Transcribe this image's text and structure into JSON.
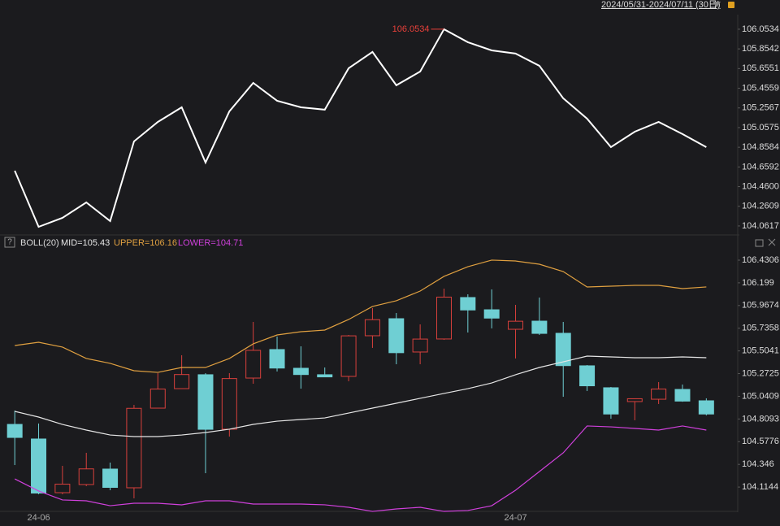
{
  "header": {
    "range": "2024/05/31-2024/07/11 (30日)"
  },
  "chart_data": [
    {
      "type": "line",
      "color": "#ffffff",
      "annotation": "106.0534",
      "annotation_color": "#e8403a",
      "values": [
        104.621,
        104.053,
        104.144,
        104.3,
        104.111,
        104.918,
        105.115,
        105.263,
        104.704,
        105.222,
        105.51,
        105.329,
        105.263,
        105.239,
        105.658,
        105.823,
        105.486,
        105.625,
        106.0534,
        105.922,
        105.839,
        105.807,
        105.683,
        105.354,
        105.148,
        104.86,
        105.016,
        105.115,
        104.992,
        104.86
      ],
      "ylim": [
        103.979,
        106.201
      ],
      "yticks": [
        106.0534,
        105.8542,
        105.6551,
        105.4559,
        105.2567,
        105.0575,
        104.8584,
        104.6592,
        {
          "value": 104.46,
          "label": "104.4600"
        },
        104.2609,
        104.0617
      ]
    },
    {
      "type": "candlestick",
      "indicator": "BOLL(20)",
      "up_color": "#d8403c",
      "down_color": "#6fcfd3",
      "categories": [
        null,
        "24-06",
        null,
        null,
        null,
        null,
        null,
        null,
        null,
        null,
        null,
        null,
        null,
        null,
        null,
        null,
        null,
        null,
        null,
        null,
        null,
        "24-07",
        null,
        null,
        null,
        null,
        null,
        null,
        null,
        null
      ],
      "open": [
        104.754,
        104.605,
        104.057,
        104.14,
        104.298,
        104.107,
        104.92,
        105.119,
        105.261,
        104.705,
        105.227,
        105.518,
        105.327,
        105.261,
        105.244,
        105.659,
        105.833,
        105.493,
        105.626,
        106.049,
        105.924,
        105.725,
        105.808,
        105.684,
        105.352,
        105.128,
        104.987,
        105.011,
        105.111,
        104.995
      ],
      "high": [
        104.895,
        104.763,
        104.331,
        104.464,
        104.364,
        104.953,
        105.277,
        105.46,
        105.277,
        105.277,
        105.8,
        105.651,
        105.551,
        105.335,
        105.667,
        105.941,
        105.891,
        105.775,
        106.14,
        106.082,
        106.132,
        105.974,
        106.049,
        105.8,
        105.36,
        105.136,
        105.02,
        105.186,
        105.161,
        105.02
      ],
      "low": [
        104.339,
        104.041,
        104.041,
        104.124,
        104.082,
        103.999,
        104.92,
        105.119,
        104.256,
        104.63,
        105.169,
        105.294,
        105.119,
        105.236,
        105.194,
        105.535,
        105.368,
        105.368,
        105.617,
        105.692,
        105.734,
        105.427,
        105.667,
        105.036,
        105.095,
        104.812,
        104.796,
        104.962,
        104.985,
        104.846
      ],
      "close": [
        104.621,
        104.053,
        104.144,
        104.3,
        104.111,
        104.918,
        105.115,
        105.263,
        104.704,
        105.222,
        105.51,
        105.329,
        105.263,
        105.239,
        105.658,
        105.823,
        105.486,
        105.625,
        106.0534,
        105.922,
        105.839,
        105.807,
        105.683,
        105.354,
        105.148,
        104.86,
        105.016,
        105.115,
        104.992,
        104.86
      ],
      "series": [
        {
          "name": "MID=105.43",
          "color": "#e6e6e6",
          "values": [
            104.887,
            104.829,
            104.754,
            104.696,
            104.646,
            104.63,
            104.63,
            104.646,
            104.671,
            104.705,
            104.754,
            104.787,
            104.804,
            104.82,
            104.87,
            104.92,
            104.97,
            105.02,
            105.07,
            105.119,
            105.177,
            105.261,
            105.335,
            105.393,
            105.451,
            105.443,
            105.435,
            105.435,
            105.443,
            105.435
          ]
        },
        {
          "name": "UPPER=106.16",
          "color": "#e0a040",
          "values": [
            105.559,
            105.592,
            105.543,
            105.427,
            105.377,
            105.302,
            105.285,
            105.335,
            105.335,
            105.427,
            105.576,
            105.667,
            105.7,
            105.717,
            105.825,
            105.958,
            106.016,
            106.115,
            106.265,
            106.364,
            106.431,
            106.422,
            106.389,
            106.314,
            106.157,
            106.165,
            106.173,
            106.173,
            106.14,
            106.157
          ]
        },
        {
          "name": "LOWER=104.71",
          "color": "#d040dc",
          "values": [
            104.198,
            104.074,
            103.983,
            103.974,
            103.924,
            103.949,
            103.949,
            103.933,
            103.974,
            103.974,
            103.941,
            103.941,
            103.941,
            103.933,
            103.908,
            103.866,
            103.891,
            103.908,
            103.866,
            103.875,
            103.924,
            104.082,
            104.273,
            104.464,
            104.738,
            104.729,
            104.713,
            104.696,
            104.738,
            104.696
          ]
        }
      ],
      "ylim": [
        103.858,
        106.555
      ],
      "yticks": [
        106.4306,
        106.199,
        105.9674,
        105.7358,
        105.5041,
        105.2725,
        105.0409,
        104.8093,
        104.5776,
        104.346,
        104.1144
      ]
    }
  ]
}
